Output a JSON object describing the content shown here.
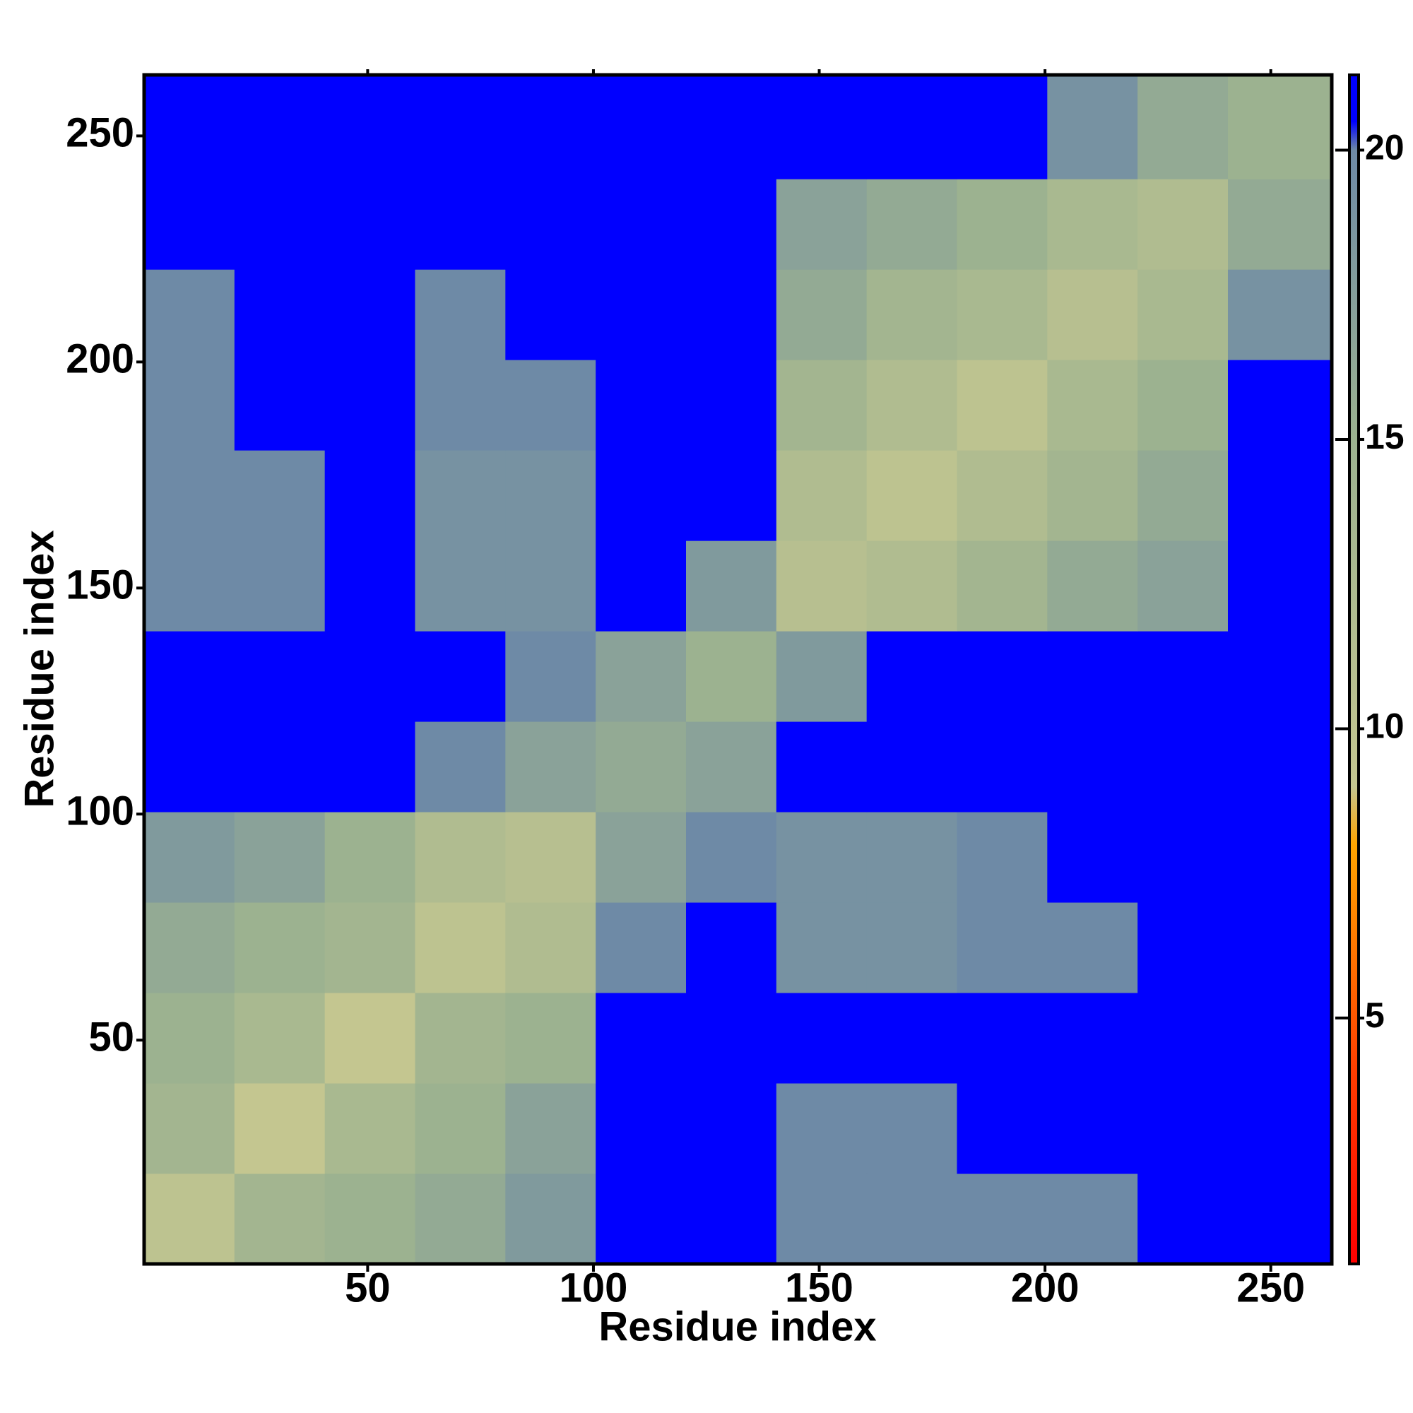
{
  "chart_data": {
    "type": "heatmap",
    "xlabel": "Residue index",
    "ylabel": "Residue index",
    "xbins": [
      0.5,
      20.5,
      40.5,
      60.5,
      80.5,
      100.5,
      120.5,
      140.5,
      160.5,
      180.5,
      200.5,
      220.5,
      240.5,
      263.5
    ],
    "ybins": [
      0.5,
      20.5,
      40.5,
      60.5,
      80.5,
      100.5,
      120.5,
      140.5,
      160.5,
      180.5,
      200.5,
      220.5,
      240.5,
      263.5
    ],
    "z": [
      [
        10,
        14,
        15,
        16,
        18,
        21,
        21,
        20,
        20,
        20,
        20,
        21,
        21
      ],
      [
        14,
        9,
        13,
        15,
        17,
        21,
        21,
        20,
        20,
        21,
        21,
        21,
        21
      ],
      [
        15,
        13,
        9,
        14,
        15,
        21,
        21,
        21,
        21,
        21,
        21,
        21,
        21
      ],
      [
        16,
        15,
        14,
        10,
        12,
        20,
        21,
        19,
        19,
        20,
        20,
        21,
        21
      ],
      [
        18,
        17,
        15,
        12,
        11,
        17,
        20,
        19,
        19,
        20,
        21,
        21,
        21
      ],
      [
        21,
        21,
        21,
        20,
        17,
        16,
        17,
        21,
        21,
        21,
        21,
        21,
        21
      ],
      [
        21,
        21,
        21,
        21,
        20,
        17,
        15,
        18,
        21,
        21,
        21,
        21,
        21
      ],
      [
        20,
        20,
        21,
        19,
        19,
        21,
        18,
        11,
        12,
        14,
        16,
        17,
        21
      ],
      [
        20,
        20,
        21,
        19,
        19,
        21,
        21,
        12,
        10,
        12,
        14,
        16,
        21
      ],
      [
        20,
        21,
        21,
        20,
        20,
        21,
        21,
        14,
        12,
        10,
        13,
        15,
        21
      ],
      [
        20,
        21,
        21,
        20,
        21,
        21,
        21,
        16,
        14,
        13,
        11,
        13,
        19
      ],
      [
        21,
        21,
        21,
        21,
        21,
        21,
        21,
        17,
        16,
        15,
        13,
        12,
        16
      ],
      [
        21,
        21,
        21,
        21,
        21,
        21,
        21,
        21,
        21,
        21,
        19,
        16,
        15
      ]
    ],
    "xlim": [
      0.5,
      263.5
    ],
    "ylim": [
      0.5,
      263.5
    ],
    "xticks": [
      50,
      100,
      150,
      200,
      250
    ],
    "yticks": [
      50,
      100,
      150,
      200,
      250
    ],
    "colorbar": {
      "lim": [
        0.75,
        21.3
      ],
      "ticks": [
        5,
        10,
        15,
        20
      ],
      "colorscale": [
        [
          0.75,
          "#ff0000"
        ],
        [
          4,
          "#ff3c00"
        ],
        [
          8,
          "#ffa500"
        ],
        [
          9,
          "#c4c690"
        ],
        [
          15,
          "#9cb290"
        ],
        [
          20,
          "#6e8aa6"
        ],
        [
          20.5,
          "#0000ff"
        ],
        [
          21.3,
          "#0000ff"
        ]
      ]
    }
  }
}
